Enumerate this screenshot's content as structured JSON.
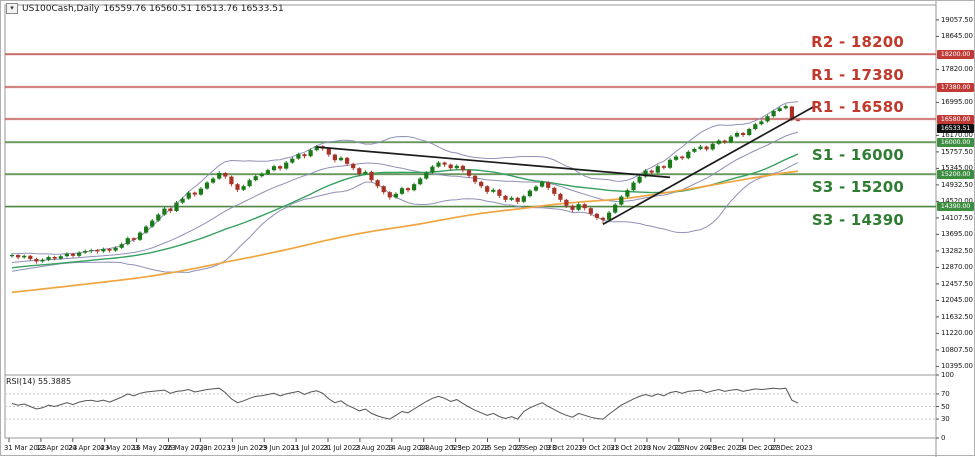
{
  "header": {
    "title": "US100Cash,Daily",
    "ohlc_values": "16559.76 16560.51 16513.76 16533.51",
    "dropdown_icon": "▾"
  },
  "colors": {
    "bull": "#1a7a1a",
    "bear": "#a93226",
    "resistance_line": "#c0504d",
    "resistance_text": "#c0392b",
    "support_line": "#4e8542",
    "support_text": "#2f7d32",
    "badge_resistance": "#c03b36",
    "badge_support": "#3e8e41",
    "badge_current": "#111111",
    "bollinger": "#9090b8",
    "ma_fast": "#36a060",
    "ma_slow": "#f0a640",
    "trendline": "#1c1c1c",
    "rsi_line": "#555555",
    "axis_text": "#1a1a1a",
    "border": "#9a9a9a"
  },
  "chart_data": {
    "type": "candlestick",
    "title": "US100Cash,Daily",
    "symbol": "US100Cash",
    "timeframe": "Daily",
    "last_ohlc": {
      "open": 16559.76,
      "high": 16560.51,
      "low": 16513.76,
      "close": 16533.51
    },
    "ylim": [
      10395.0,
      19057.5
    ],
    "price_ticks": [
      19057.5,
      18645.0,
      17820.0,
      16995.0,
      16170.0,
      15757.5,
      15345.0,
      14932.5,
      14520.0,
      14107.5,
      13695.0,
      13282.5,
      12870.0,
      12457.5,
      12045.0,
      11632.5,
      11220.0,
      10807.5,
      10395.0
    ],
    "x_labels": [
      "31 Mar 2023",
      "12 Apr 2023",
      "24 Apr 2023",
      "4 May 2023",
      "16 May 2023",
      "26 May 2023",
      "7 Jun 2023",
      "19 Jun 2023",
      "29 Jun 2023",
      "11 Jul 2023",
      "21 Jul 2023",
      "2 Aug 2023",
      "14 Aug 2023",
      "24 Aug 2023",
      "5 Sep 2023",
      "15 Sep 2023",
      "27 Sep 2023",
      "9 Oct 2023",
      "19 Oct 2023",
      "31 Oct 2023",
      "10 Nov 2023",
      "22 Nov 2023",
      "4 Dec 2023",
      "14 Dec 2023",
      "27 Dec 2023"
    ],
    "support_resistance": [
      {
        "label": "R2 - 18200",
        "price": 18200,
        "kind": "resistance"
      },
      {
        "label": "R1 - 17380",
        "price": 17380,
        "kind": "resistance"
      },
      {
        "label": "R1 - 16580",
        "price": 16580,
        "kind": "resistance"
      },
      {
        "label": "S1 - 16000",
        "price": 16000,
        "kind": "support"
      },
      {
        "label": "S3 - 15200",
        "price": 15200,
        "kind": "support"
      },
      {
        "label": "S3 - 14390",
        "price": 14390,
        "kind": "support"
      }
    ],
    "price_badges": [
      {
        "text": "18200.00",
        "type": "resistance"
      },
      {
        "text": "17380.00",
        "type": "resistance"
      },
      {
        "text": "16580.00",
        "type": "resistance"
      },
      {
        "text": "16533.51",
        "type": "current"
      },
      {
        "text": "16000.00",
        "type": "support"
      },
      {
        "text": "15200.00",
        "type": "support"
      },
      {
        "text": "14390.00",
        "type": "support"
      }
    ],
    "trendlines": [
      {
        "name": "descending-trendline",
        "from_index": 50,
        "from_price": 15880,
        "to_index": 108,
        "to_price": 15120
      },
      {
        "name": "ascending-trendline",
        "from_index": 97,
        "from_price": 13950,
        "to_index": 131.5,
        "to_price": 16880
      }
    ],
    "indicators": {
      "bollinger_period": 20,
      "ma_fast_period": 34,
      "ma_slow_period": 100
    },
    "candles_ohlc": [
      [
        13150,
        13220,
        13110,
        13180
      ],
      [
        13180,
        13200,
        13070,
        13120
      ],
      [
        13120,
        13195,
        13085,
        13160
      ],
      [
        13160,
        13180,
        13030,
        13080
      ],
      [
        13080,
        13110,
        12960,
        13020
      ],
      [
        13020,
        13095,
        12985,
        13060
      ],
      [
        13060,
        13165,
        13025,
        13130
      ],
      [
        13130,
        13160,
        13045,
        13090
      ],
      [
        13090,
        13185,
        13060,
        13150
      ],
      [
        13150,
        13245,
        13120,
        13210
      ],
      [
        13210,
        13235,
        13115,
        13160
      ],
      [
        13160,
        13275,
        13130,
        13240
      ],
      [
        13240,
        13320,
        13205,
        13280
      ],
      [
        13280,
        13340,
        13230,
        13300
      ],
      [
        13300,
        13330,
        13215,
        13270
      ],
      [
        13270,
        13365,
        13235,
        13330
      ],
      [
        13330,
        13355,
        13240,
        13290
      ],
      [
        13290,
        13400,
        13260,
        13360
      ],
      [
        13360,
        13495,
        13330,
        13450
      ],
      [
        13450,
        13640,
        13420,
        13600
      ],
      [
        13600,
        13625,
        13505,
        13560
      ],
      [
        13560,
        13775,
        13530,
        13740
      ],
      [
        13740,
        13930,
        13710,
        13890
      ],
      [
        13890,
        14080,
        13860,
        14040
      ],
      [
        14040,
        14230,
        14010,
        14190
      ],
      [
        14190,
        14380,
        14160,
        14340
      ],
      [
        14340,
        14365,
        14230,
        14280
      ],
      [
        14280,
        14530,
        14255,
        14490
      ],
      [
        14490,
        14630,
        14455,
        14590
      ],
      [
        14590,
        14780,
        14560,
        14740
      ],
      [
        14740,
        14765,
        14635,
        14690
      ],
      [
        14690,
        14880,
        14660,
        14840
      ],
      [
        14840,
        15030,
        14810,
        14990
      ],
      [
        14990,
        15130,
        14960,
        15090
      ],
      [
        15090,
        15280,
        15060,
        15230
      ],
      [
        15230,
        15255,
        15085,
        15140
      ],
      [
        15140,
        15165,
        14895,
        14950
      ],
      [
        14950,
        14980,
        14755,
        14810
      ],
      [
        14810,
        14940,
        14780,
        14900
      ],
      [
        14900,
        15090,
        14870,
        15050
      ],
      [
        15050,
        15190,
        15020,
        15150
      ],
      [
        15150,
        15250,
        15115,
        15210
      ],
      [
        15210,
        15340,
        15180,
        15300
      ],
      [
        15300,
        15440,
        15270,
        15400
      ],
      [
        15400,
        15425,
        15285,
        15340
      ],
      [
        15340,
        15530,
        15310,
        15490
      ],
      [
        15490,
        15630,
        15460,
        15590
      ],
      [
        15590,
        15740,
        15560,
        15700
      ],
      [
        15700,
        15725,
        15595,
        15650
      ],
      [
        15650,
        15840,
        15620,
        15800
      ],
      [
        15800,
        15930,
        15770,
        15900
      ],
      [
        15900,
        15925,
        15785,
        15840
      ],
      [
        15840,
        15865,
        15635,
        15690
      ],
      [
        15690,
        15715,
        15495,
        15550
      ],
      [
        15550,
        15650,
        15520,
        15610
      ],
      [
        15610,
        15635,
        15405,
        15460
      ],
      [
        15460,
        15485,
        15295,
        15350
      ],
      [
        15350,
        15375,
        15155,
        15210
      ],
      [
        15210,
        15300,
        15180,
        15260
      ],
      [
        15260,
        15285,
        14995,
        15050
      ],
      [
        15050,
        15075,
        14845,
        14900
      ],
      [
        14900,
        14925,
        14695,
        14750
      ],
      [
        14750,
        14775,
        14565,
        14620
      ],
      [
        14620,
        14750,
        14590,
        14710
      ],
      [
        14710,
        14890,
        14680,
        14850
      ],
      [
        14850,
        14875,
        14745,
        14800
      ],
      [
        14800,
        14990,
        14770,
        14950
      ],
      [
        14950,
        15130,
        14920,
        15090
      ],
      [
        15090,
        15280,
        15060,
        15240
      ],
      [
        15240,
        15430,
        15210,
        15390
      ],
      [
        15390,
        15530,
        15360,
        15490
      ],
      [
        15490,
        15515,
        15385,
        15440
      ],
      [
        15440,
        15465,
        15295,
        15350
      ],
      [
        15350,
        15450,
        15320,
        15410
      ],
      [
        15410,
        15435,
        15245,
        15300
      ],
      [
        15300,
        15325,
        15105,
        15160
      ],
      [
        15160,
        15185,
        14955,
        15010
      ],
      [
        15010,
        15035,
        14845,
        14900
      ],
      [
        14900,
        14925,
        14705,
        14760
      ],
      [
        14760,
        14850,
        14730,
        14810
      ],
      [
        14810,
        14835,
        14605,
        14660
      ],
      [
        14660,
        14685,
        14505,
        14560
      ],
      [
        14560,
        14650,
        14530,
        14610
      ],
      [
        14610,
        14635,
        14455,
        14510
      ],
      [
        14510,
        14690,
        14480,
        14650
      ],
      [
        14650,
        14830,
        14620,
        14790
      ],
      [
        14790,
        14930,
        14760,
        14890
      ],
      [
        14890,
        15040,
        14860,
        15000
      ],
      [
        15000,
        15025,
        14805,
        14860
      ],
      [
        14860,
        14885,
        14655,
        14710
      ],
      [
        14710,
        14735,
        14505,
        14560
      ],
      [
        14560,
        14585,
        14355,
        14410
      ],
      [
        14410,
        14435,
        14255,
        14310
      ],
      [
        14310,
        14490,
        14280,
        14450
      ],
      [
        14450,
        14475,
        14295,
        14350
      ],
      [
        14350,
        14375,
        14155,
        14210
      ],
      [
        14210,
        14235,
        14055,
        14110
      ],
      [
        14110,
        14135,
        13965,
        14060
      ],
      [
        14060,
        14280,
        14030,
        14240
      ],
      [
        14240,
        14480,
        14210,
        14440
      ],
      [
        14440,
        14680,
        14410,
        14640
      ],
      [
        14640,
        14840,
        14610,
        14800
      ],
      [
        14800,
        15030,
        14770,
        14990
      ],
      [
        14990,
        15180,
        14960,
        15140
      ],
      [
        15140,
        15330,
        15110,
        15290
      ],
      [
        15290,
        15315,
        15185,
        15240
      ],
      [
        15240,
        15440,
        15210,
        15400
      ],
      [
        15400,
        15425,
        15315,
        15360
      ],
      [
        15360,
        15600,
        15330,
        15560
      ],
      [
        15560,
        15680,
        15530,
        15640
      ],
      [
        15640,
        15665,
        15555,
        15600
      ],
      [
        15600,
        15800,
        15570,
        15760
      ],
      [
        15760,
        15870,
        15730,
        15830
      ],
      [
        15830,
        15930,
        15800,
        15890
      ],
      [
        15890,
        15915,
        15775,
        15820
      ],
      [
        15820,
        16000,
        15790,
        15960
      ],
      [
        15960,
        16080,
        15930,
        16040
      ],
      [
        16040,
        16065,
        15955,
        16000
      ],
      [
        16000,
        16180,
        15970,
        16140
      ],
      [
        16140,
        16270,
        16110,
        16230
      ],
      [
        16230,
        16255,
        16130,
        16180
      ],
      [
        16180,
        16365,
        16150,
        16330
      ],
      [
        16330,
        16485,
        16300,
        16450
      ],
      [
        16450,
        16555,
        16420,
        16520
      ],
      [
        16520,
        16685,
        16490,
        16650
      ],
      [
        16650,
        16815,
        16620,
        16780
      ],
      [
        16780,
        16885,
        16750,
        16850
      ],
      [
        16850,
        16950,
        16820,
        16900
      ],
      [
        16890,
        16910,
        16530,
        16565
      ],
      [
        16560,
        16561,
        16514,
        16534
      ]
    ],
    "rsi": {
      "label": "RSI(14) 55.3885",
      "period": 14,
      "last_value": 55.3885,
      "levels": [
        100,
        70,
        50,
        30,
        0
      ],
      "values": [
        55,
        52,
        54,
        50,
        46,
        48,
        52,
        50,
        53,
        56,
        53,
        57,
        59,
        60,
        58,
        60,
        57,
        61,
        65,
        70,
        67,
        71,
        73,
        74,
        75,
        76,
        71,
        74,
        75,
        77,
        73,
        75,
        77,
        78,
        79,
        72,
        62,
        56,
        59,
        63,
        66,
        67,
        69,
        71,
        67,
        70,
        72,
        74,
        69,
        73,
        75,
        71,
        62,
        56,
        59,
        52,
        48,
        43,
        46,
        39,
        35,
        32,
        30,
        36,
        42,
        40,
        46,
        52,
        58,
        63,
        66,
        63,
        58,
        61,
        55,
        49,
        44,
        40,
        36,
        39,
        34,
        31,
        34,
        30,
        42,
        48,
        52,
        56,
        50,
        45,
        40,
        36,
        33,
        39,
        36,
        33,
        31,
        30,
        38,
        45,
        52,
        57,
        62,
        66,
        69,
        66,
        70,
        67,
        72,
        74,
        71,
        74,
        75,
        76,
        72,
        75,
        77,
        74,
        76,
        77,
        74,
        76,
        78,
        77,
        78,
        79,
        78,
        79,
        60,
        55.39
      ]
    }
  }
}
